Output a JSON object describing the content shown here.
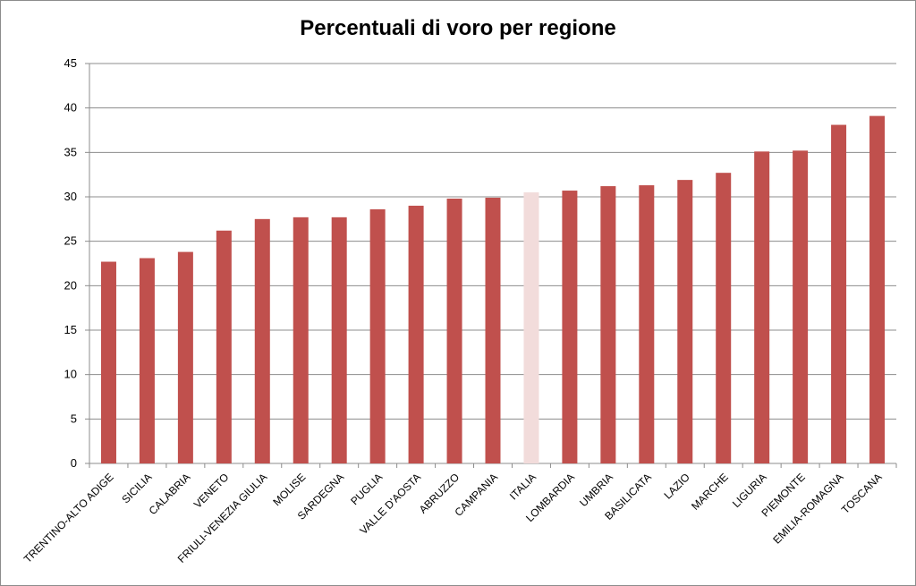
{
  "chart_data": {
    "type": "bar",
    "title": "Percentuali di voro per regione",
    "xlabel": "",
    "ylabel": "",
    "ylim": [
      0,
      45
    ],
    "yticks": [
      0,
      5,
      10,
      15,
      20,
      25,
      30,
      35,
      40,
      45
    ],
    "grid": true,
    "legend": "none",
    "bar_color": "#c0504d",
    "highlight_color": "#f2dcdb",
    "highlight_category": "ITALIA",
    "categories": [
      "TRENTINO-ALTO ADIGE",
      "SICILIA",
      "CALABRIA",
      "VENETO",
      "FRIULI-VENEZIA GIULIA",
      "MOLISE",
      "SARDEGNA",
      "PUGLIA",
      "VALLE D'AOSTA",
      "ABRUZZO",
      "CAMPANIA",
      "ITALIA",
      "LOMBARDIA",
      "UMBRIA",
      "BASILICATA",
      "LAZIO",
      "MARCHE",
      "LIGURIA",
      "PIEMONTE",
      "EMILIA-ROMAGNA",
      "TOSCANA"
    ],
    "values": [
      22.7,
      23.1,
      23.8,
      26.2,
      27.5,
      27.7,
      27.7,
      28.6,
      29.0,
      29.8,
      29.9,
      30.5,
      30.7,
      31.2,
      31.3,
      31.9,
      32.7,
      35.1,
      35.2,
      38.1,
      39.1
    ]
  }
}
